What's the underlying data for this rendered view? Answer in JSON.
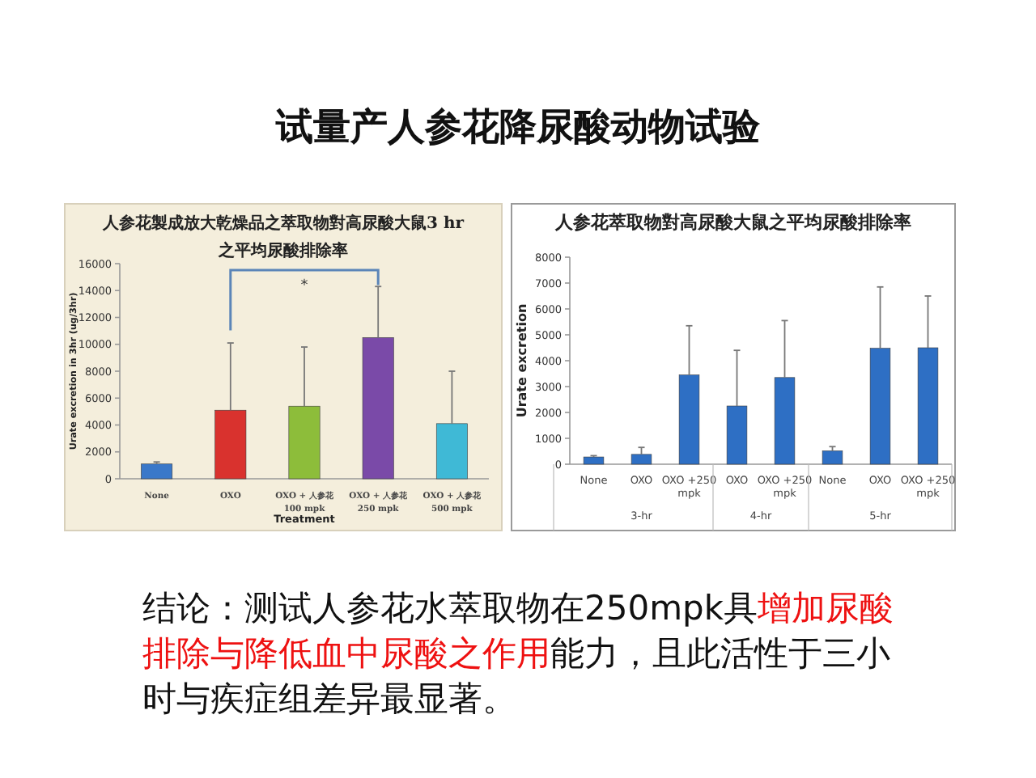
{
  "chart_data": [
    {
      "type": "other",
      "title": "试量产人参花降尿酸动物试验"
    },
    {
      "type": "bar",
      "title": "人参花製成放大乾燥品之萃取物對高尿酸大鼠3 hr\n之平均尿酸排除率",
      "xlabel": "Treatment",
      "ylabel": "Urate excretion in 3hr (ug/3hr)",
      "categories": [
        "None",
        "OXO",
        "OXO + 人参花\n100 mpk",
        "OXO + 人参花\n250 mpk",
        "OXO + 人参花\n500 mpk"
      ],
      "values": [
        1100,
        5100,
        5400,
        10500,
        4100
      ],
      "colors": [
        "#3a78c9",
        "#d9322e",
        "#8dbd3a",
        "#7a4aa8",
        "#3fb9d6"
      ],
      "errors": [
        [
          1100,
          1250
        ],
        [
          5100,
          10100
        ],
        [
          5400,
          9800
        ],
        [
          10500,
          14300
        ],
        [
          4100,
          8000
        ]
      ],
      "ylim": [
        0,
        16000
      ],
      "yticks": [
        0,
        2000,
        4000,
        6000,
        8000,
        10000,
        12000,
        14000,
        16000
      ],
      "grid": false,
      "annotations": [
        "*"
      ]
    },
    {
      "type": "bar",
      "title": "人参花萃取物對高尿酸大鼠之平均尿酸排除率",
      "ylabel": "Urate excretion",
      "categories": [
        "None",
        "OXO",
        "OXO +250\nmpk",
        "OXO",
        "OXO +250\nmpk",
        "None",
        "OXO",
        "OXO +250\nmpk"
      ],
      "values": [
        280,
        380,
        3450,
        2250,
        3350,
        520,
        4480,
        4500
      ],
      "colors": [
        "#2e6fc4",
        "#2e6fc4",
        "#2e6fc4",
        "#2e6fc4",
        "#2e6fc4",
        "#2e6fc4",
        "#2e6fc4",
        "#2e6fc4"
      ],
      "errors": [
        [
          280,
          330
        ],
        [
          380,
          650
        ],
        [
          3450,
          5350
        ],
        [
          2250,
          4400
        ],
        [
          3350,
          5550
        ],
        [
          520,
          680
        ],
        [
          4480,
          6850
        ],
        [
          4500,
          6500
        ]
      ],
      "ylim": [
        0,
        8000
      ],
      "yticks": [
        0,
        1000,
        2000,
        3000,
        4000,
        5000,
        6000,
        7000,
        8000
      ],
      "grid": false,
      "annotations": [
        "3-hr",
        "4-hr",
        "5-hr"
      ]
    },
    {
      "type": "other",
      "annotations": [
        "结论：测试人参花水萃取物在250mpk具",
        "增加尿酸排除与降低血中尿酸之作用",
        "能力，且此活性于三小时与疾症组差异最显著。"
      ]
    }
  ]
}
